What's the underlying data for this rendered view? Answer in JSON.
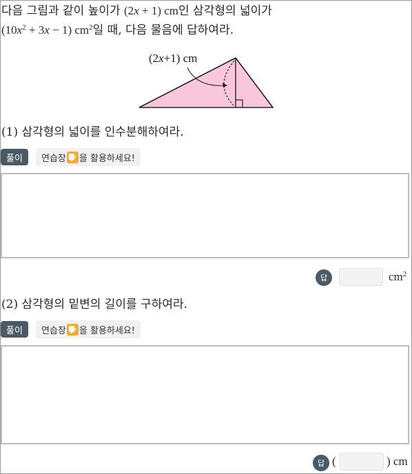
{
  "problem": {
    "line1_pre": "다음 그림과 같이 높이가 ",
    "height_expr_open": "(2",
    "height_var": "x",
    "height_expr_close": " + 1) cm",
    "line1_post": "인 삼각형의 넓이가",
    "area_open": "(10",
    "area_var1": "x",
    "area_exp": "2",
    "area_mid": " + 3",
    "area_var2": "x",
    "area_close": " − 1) cm",
    "area_unit_exp": "2",
    "line2_post": "일 때, 다음 물음에 답하여라."
  },
  "diagram": {
    "label_open": "(2",
    "label_var": "x",
    "label_close": "+1) cm",
    "triangle_fill": "#f9c6dc"
  },
  "q1": {
    "text": "(1) 삼각형의 넓이를 인수분해하여라.",
    "badge": "풀이",
    "hint_pre": "연습장",
    "hint_post": "을 활용하세요!",
    "answer_badge": "답",
    "unit": "cm",
    "unit_exp": "2"
  },
  "q2": {
    "text": "(2) 삼각형의 밑변의 길이를 구하여라.",
    "badge": "풀이",
    "hint_pre": "연습장",
    "hint_post": "을 활용하세요!",
    "answer_badge": "답",
    "paren_open": "(",
    "paren_close": ") cm"
  }
}
